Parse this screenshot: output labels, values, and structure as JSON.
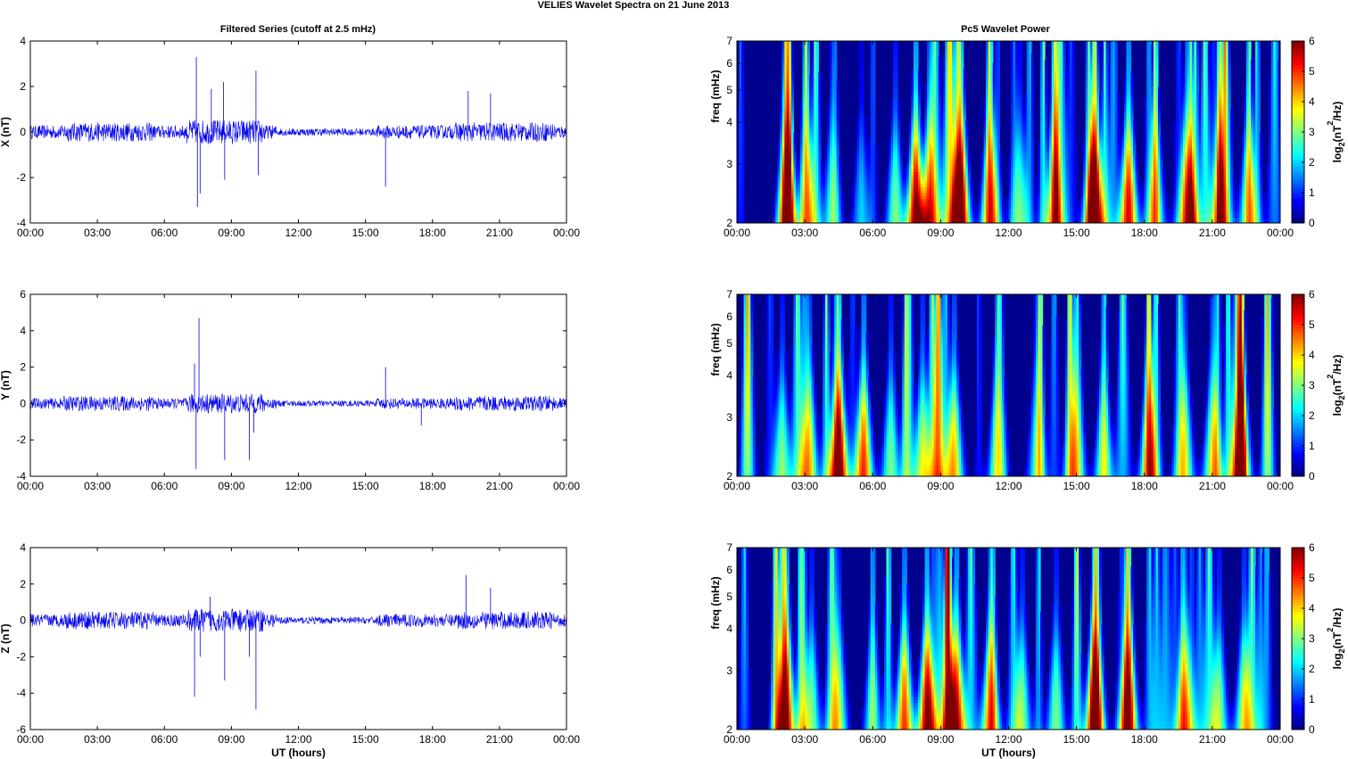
{
  "figure": {
    "title": "VELIES Wavelet Spectra on 21 June      2013",
    "left_title": "Filtered Series (cutoff at 2.5 mHz)",
    "right_title": "Pc5 Wavelet Power",
    "xlabel": "UT (hours)",
    "freq_label": "freq (mHz)",
    "cbar_label": "log2(nT2/Hz)"
  },
  "colors": {
    "trace": "#0000ee",
    "cmap": [
      "#00008f",
      "#0000ff",
      "#00ffff",
      "#ffff00",
      "#ff0000",
      "#800000"
    ]
  },
  "chart_data": [
    {
      "type": "line",
      "id": "x-series",
      "ylabel": "X (nT)",
      "xlim": [
        0,
        24
      ],
      "ylim": [
        -4,
        4
      ],
      "yticks": [
        -4,
        -2,
        0,
        2,
        4
      ],
      "xtick_labels": [
        "00:00",
        "03:00",
        "06:00",
        "09:00",
        "12:00",
        "15:00",
        "18:00",
        "21:00",
        "00:00"
      ],
      "noise_amplitude": 0.3,
      "spikes": [
        {
          "t": 7.43,
          "y": 3.3
        },
        {
          "t": 7.48,
          "y": -3.3
        },
        {
          "t": 7.6,
          "y": -2.7
        },
        {
          "t": 8.1,
          "y": 1.9
        },
        {
          "t": 8.65,
          "y": 2.2
        },
        {
          "t": 8.7,
          "y": -2.1
        },
        {
          "t": 10.1,
          "y": 2.7
        },
        {
          "t": 10.2,
          "y": -1.9
        },
        {
          "t": 15.9,
          "y": -2.4
        },
        {
          "t": 19.6,
          "y": 1.8
        },
        {
          "t": 20.6,
          "y": 1.7
        }
      ]
    },
    {
      "type": "line",
      "id": "y-series",
      "ylabel": "Y (nT)",
      "xlim": [
        0,
        24
      ],
      "ylim": [
        -4,
        6
      ],
      "yticks": [
        -4,
        -2,
        0,
        2,
        4,
        6
      ],
      "xtick_labels": [
        "00:00",
        "03:00",
        "06:00",
        "09:00",
        "12:00",
        "15:00",
        "18:00",
        "21:00",
        "00:00"
      ],
      "noise_amplitude": 0.3,
      "spikes": [
        {
          "t": 7.35,
          "y": 2.2
        },
        {
          "t": 7.42,
          "y": -3.6
        },
        {
          "t": 7.55,
          "y": 4.7
        },
        {
          "t": 8.7,
          "y": -3.1
        },
        {
          "t": 9.8,
          "y": -3.1
        },
        {
          "t": 10.0,
          "y": -1.6
        },
        {
          "t": 15.9,
          "y": 2.0
        },
        {
          "t": 17.5,
          "y": -1.2
        }
      ]
    },
    {
      "type": "line",
      "id": "z-series",
      "ylabel": "Z (nT)",
      "xlim": [
        0,
        24
      ],
      "ylim": [
        -6,
        4
      ],
      "yticks": [
        -6,
        -4,
        -2,
        0,
        2,
        4
      ],
      "xtick_labels": [
        "00:00",
        "03:00",
        "06:00",
        "09:00",
        "12:00",
        "15:00",
        "18:00",
        "21:00",
        "00:00"
      ],
      "noise_amplitude": 0.35,
      "spikes": [
        {
          "t": 7.35,
          "y": -4.2
        },
        {
          "t": 7.6,
          "y": -2.0
        },
        {
          "t": 8.05,
          "y": 1.3
        },
        {
          "t": 8.7,
          "y": -3.3
        },
        {
          "t": 9.8,
          "y": -2.0
        },
        {
          "t": 10.1,
          "y": -4.9
        },
        {
          "t": 19.5,
          "y": 2.5
        },
        {
          "t": 20.6,
          "y": 1.8
        }
      ]
    },
    {
      "type": "heatmap",
      "id": "x-wavelet",
      "ylabel": "freq (mHz)",
      "xlim": [
        0,
        24
      ],
      "ylim": [
        2,
        7
      ],
      "yticks": [
        2,
        3,
        4,
        5,
        6,
        7
      ],
      "clim": [
        0,
        6
      ],
      "cticks": [
        0,
        1,
        2,
        3,
        4,
        5,
        6
      ],
      "xtick_labels": [
        "00:00",
        "03:00",
        "06:00",
        "09:00",
        "12:00",
        "15:00",
        "18:00",
        "21:00",
        "00:00"
      ],
      "blobs": [
        {
          "t": 2.2,
          "p": 5
        },
        {
          "t": 3.1,
          "p": 3
        },
        {
          "t": 4.2,
          "p": 2.5
        },
        {
          "t": 5.5,
          "p": 2
        },
        {
          "t": 7.0,
          "p": 3
        },
        {
          "t": 7.9,
          "p": 6
        },
        {
          "t": 8.5,
          "p": 4
        },
        {
          "t": 9.9,
          "p": 5.5
        },
        {
          "t": 11.2,
          "p": 4
        },
        {
          "t": 12.5,
          "p": 2.5
        },
        {
          "t": 14.0,
          "p": 3
        },
        {
          "t": 15.8,
          "p": 6
        },
        {
          "t": 17.3,
          "p": 5.5
        },
        {
          "t": 18.5,
          "p": 3
        },
        {
          "t": 19.9,
          "p": 5
        },
        {
          "t": 21.3,
          "p": 3
        },
        {
          "t": 22.6,
          "p": 3.5
        }
      ]
    },
    {
      "type": "heatmap",
      "id": "y-wavelet",
      "ylabel": "freq (mHz)",
      "xlim": [
        0,
        24
      ],
      "ylim": [
        2,
        7
      ],
      "yticks": [
        2,
        3,
        4,
        5,
        6,
        7
      ],
      "clim": [
        0,
        6
      ],
      "cticks": [
        0,
        1,
        2,
        3,
        4,
        5,
        6
      ],
      "xtick_labels": [
        "00:00",
        "03:00",
        "06:00",
        "09:00",
        "12:00",
        "15:00",
        "18:00",
        "21:00",
        "00:00"
      ],
      "blobs": [
        {
          "t": 2.0,
          "p": 3
        },
        {
          "t": 3.2,
          "p": 3.5
        },
        {
          "t": 4.5,
          "p": 6
        },
        {
          "t": 5.6,
          "p": 5
        },
        {
          "t": 6.8,
          "p": 3
        },
        {
          "t": 8.2,
          "p": 3.5
        },
        {
          "t": 9.6,
          "p": 4
        },
        {
          "t": 11.5,
          "p": 2.5
        },
        {
          "t": 13.2,
          "p": 2
        },
        {
          "t": 15.0,
          "p": 2.5
        },
        {
          "t": 16.2,
          "p": 3
        },
        {
          "t": 18.2,
          "p": 3.5
        },
        {
          "t": 19.8,
          "p": 3
        },
        {
          "t": 21.0,
          "p": 3.5
        },
        {
          "t": 22.3,
          "p": 4
        }
      ]
    },
    {
      "type": "heatmap",
      "id": "z-wavelet",
      "ylabel": "freq (mHz)",
      "xlim": [
        0,
        24
      ],
      "ylim": [
        2,
        7
      ],
      "yticks": [
        2,
        3,
        4,
        5,
        6,
        7
      ],
      "clim": [
        0,
        6
      ],
      "cticks": [
        0,
        1,
        2,
        3,
        4,
        5,
        6
      ],
      "xtick_labels": [
        "00:00",
        "03:00",
        "06:00",
        "09:00",
        "12:00",
        "15:00",
        "18:00",
        "21:00",
        "00:00"
      ],
      "blobs": [
        {
          "t": 2.2,
          "p": 4.5
        },
        {
          "t": 3.3,
          "p": 3
        },
        {
          "t": 4.5,
          "p": 3
        },
        {
          "t": 6.0,
          "p": 2.5
        },
        {
          "t": 7.4,
          "p": 5
        },
        {
          "t": 8.4,
          "p": 6
        },
        {
          "t": 9.7,
          "p": 5.5
        },
        {
          "t": 11.2,
          "p": 4.5
        },
        {
          "t": 12.6,
          "p": 3
        },
        {
          "t": 14.1,
          "p": 3
        },
        {
          "t": 15.8,
          "p": 6
        },
        {
          "t": 17.3,
          "p": 5
        },
        {
          "t": 19.8,
          "p": 4
        },
        {
          "t": 21.3,
          "p": 3
        },
        {
          "t": 22.4,
          "p": 3.5
        }
      ]
    }
  ]
}
